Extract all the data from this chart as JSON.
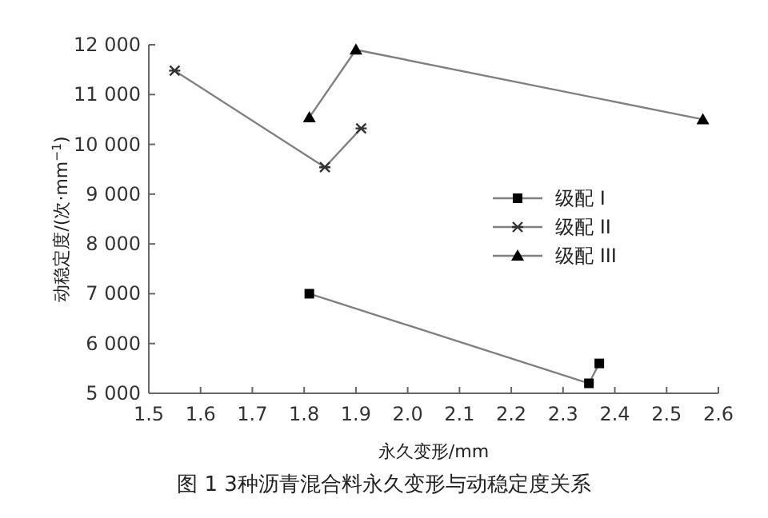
{
  "chart_data": {
    "type": "line",
    "xlabel": "永久变形/mm",
    "ylabel": "动稳定度/(次·mm$^{−1}$)",
    "annotations": [
      "图 1 3种沥青混合料永久变形与动稳定度关系"
    ],
    "xlim": [
      1.5,
      2.6
    ],
    "ylim": [
      5000,
      12000
    ],
    "xticks": [
      1.5,
      1.6,
      1.7,
      1.8,
      1.9,
      {
        "value": 2,
        "label": "2.0"
      },
      2.1,
      2.2,
      2.3,
      2.4,
      2.5,
      2.6
    ],
    "yticks": [
      {
        "value": 5000,
        "label": "5 000"
      },
      {
        "value": 6000,
        "label": "6 000"
      },
      {
        "value": 7000,
        "label": "7 000"
      },
      {
        "value": 8000,
        "label": "8 000"
      },
      {
        "value": 9000,
        "label": "9 000"
      },
      {
        "value": 10000,
        "label": "10 000"
      },
      {
        "value": 11000,
        "label": "11 000"
      },
      {
        "value": 12000,
        "label": "12 000"
      }
    ],
    "grid": false,
    "legend": "right",
    "line_style": "solid",
    "series": [
      {
        "name": "级配 I",
        "color": "#808080",
        "marker": "square",
        "x": [
          1.81,
          2.35,
          2.37
        ],
        "values": [
          7000,
          5200,
          5600
        ]
      },
      {
        "name": "级配 II",
        "color": "#808080",
        "marker": "cross",
        "x": [
          1.55,
          1.84,
          1.91
        ],
        "values": [
          11480,
          9540,
          10320
        ]
      },
      {
        "name": "级配 III",
        "color": "#808080",
        "marker": "triangle",
        "x": [
          1.81,
          1.9,
          2.57
        ],
        "values": [
          10540,
          11900,
          10500
        ]
      }
    ]
  }
}
